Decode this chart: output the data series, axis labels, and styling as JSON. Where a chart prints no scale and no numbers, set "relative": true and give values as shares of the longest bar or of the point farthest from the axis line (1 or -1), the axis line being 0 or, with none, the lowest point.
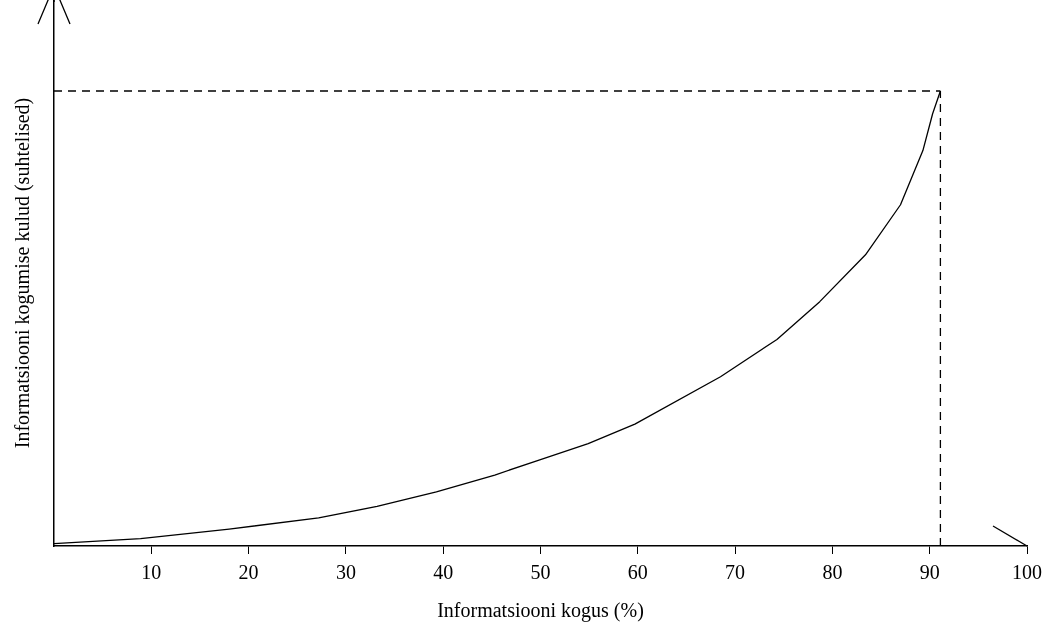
{
  "chart_data": {
    "type": "line",
    "relative": true,
    "xlabel": "Informatsiooni kogus (%)",
    "ylabel": "Informatsiooni kogumise kulud (suhtelised)",
    "xlim": [
      0,
      100
    ],
    "xticks": [
      10,
      20,
      30,
      40,
      50,
      60,
      70,
      80,
      90,
      100
    ],
    "series": [
      {
        "color": "#000000",
        "x": [
          0,
          8.9,
          18,
          27.2,
          33.2,
          39.3,
          45.3,
          50,
          54.9,
          59.7,
          68.5,
          74.3,
          78.7,
          83.4,
          87,
          89.3,
          90.3,
          91.1
        ],
        "values": [
          0.005,
          0.016,
          0.037,
          0.062,
          0.087,
          0.119,
          0.156,
          0.19,
          0.225,
          0.268,
          0.372,
          0.454,
          0.537,
          0.64,
          0.75,
          0.869,
          0.95,
          1
        ]
      }
    ],
    "ref_lines": [
      {
        "axis": "x",
        "value": 91.1,
        "color": "#000000",
        "line_style": "dashed"
      },
      {
        "axis": "y",
        "value": 1,
        "color": "#000000",
        "line_style": "dashed"
      }
    ],
    "marker": "none",
    "line_style": "solid",
    "legend": false
  }
}
